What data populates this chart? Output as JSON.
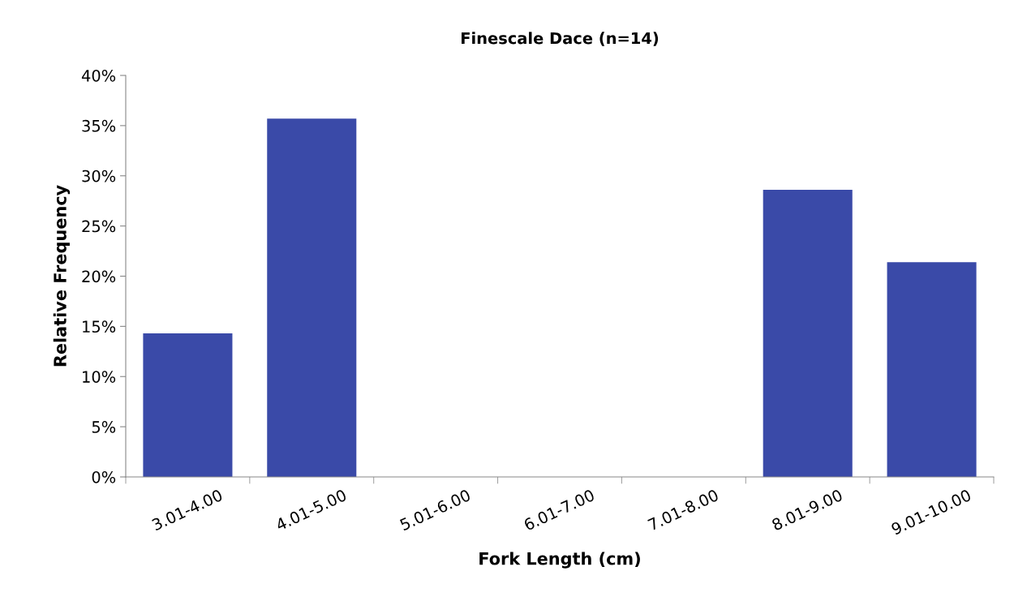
{
  "chart_data": {
    "type": "bar",
    "title": "Finescale Dace (n=14)",
    "xlabel": "Fork Length (cm)",
    "ylabel": "Relative Frequency",
    "categories": [
      "3.01-4.00",
      "4.01-5.00",
      "5.01-6.00",
      "6.01-7.00",
      "7.01-8.00",
      "8.01-9.00",
      "9.01-10.00"
    ],
    "values": [
      14.3,
      35.7,
      0,
      0,
      0,
      28.6,
      21.4
    ],
    "color": "#3a4aa8",
    "ylim": [
      0,
      40
    ],
    "yticks": [
      {
        "value": 0,
        "label": "0%"
      },
      {
        "value": 5,
        "label": "5%"
      },
      {
        "value": 10,
        "label": "10%"
      },
      {
        "value": 15,
        "label": "15%"
      },
      {
        "value": 20,
        "label": "20%"
      },
      {
        "value": 25,
        "label": "25%"
      },
      {
        "value": 30,
        "label": "30%"
      },
      {
        "value": 35,
        "label": "35%"
      },
      {
        "value": 40,
        "label": "40%"
      }
    ],
    "grid": false,
    "legend": false
  }
}
